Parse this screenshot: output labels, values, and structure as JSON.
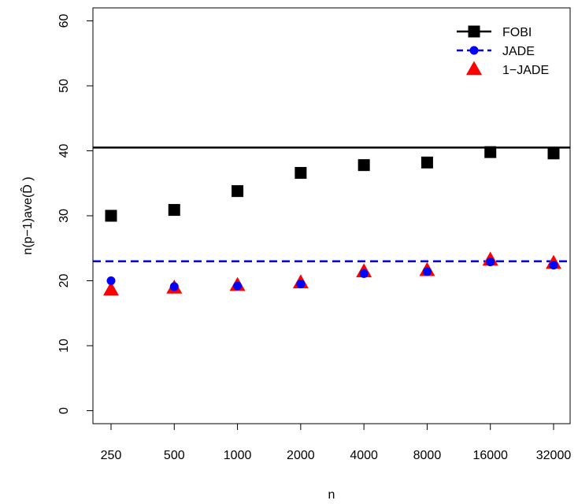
{
  "chart_data": {
    "type": "scatter",
    "xlabel": "n",
    "ylabel": "n(p−1)ave(D̂ )",
    "categories": [
      "250",
      "500",
      "1000",
      "2000",
      "4000",
      "8000",
      "16000",
      "32000"
    ],
    "yticks": [
      "0",
      "10",
      "20",
      "30",
      "40",
      "50",
      "60"
    ],
    "ylim": [
      -2,
      62
    ],
    "grid": false,
    "legend_position": "top-right",
    "series": [
      {
        "name": "FOBI",
        "marker": "square",
        "color": "#000000",
        "values": [
          30.0,
          30.9,
          33.8,
          36.6,
          37.8,
          38.2,
          39.8,
          39.6
        ]
      },
      {
        "name": "JADE",
        "marker": "circle",
        "color": "#0000ff",
        "values": [
          20.0,
          19.1,
          19.2,
          19.5,
          21.1,
          21.4,
          22.9,
          22.4
        ]
      },
      {
        "name": "1−JADE",
        "marker": "triangle",
        "color": "#ff0000",
        "values": [
          18.6,
          18.9,
          19.3,
          19.7,
          21.4,
          21.6,
          23.2,
          22.7
        ]
      }
    ],
    "reference_lines": [
      {
        "series": "FOBI",
        "value": 40.5,
        "color": "#000000",
        "style": "solid"
      },
      {
        "series": "JADE",
        "value": 23.0,
        "color": "#0000ff",
        "style": "dashed"
      }
    ]
  }
}
